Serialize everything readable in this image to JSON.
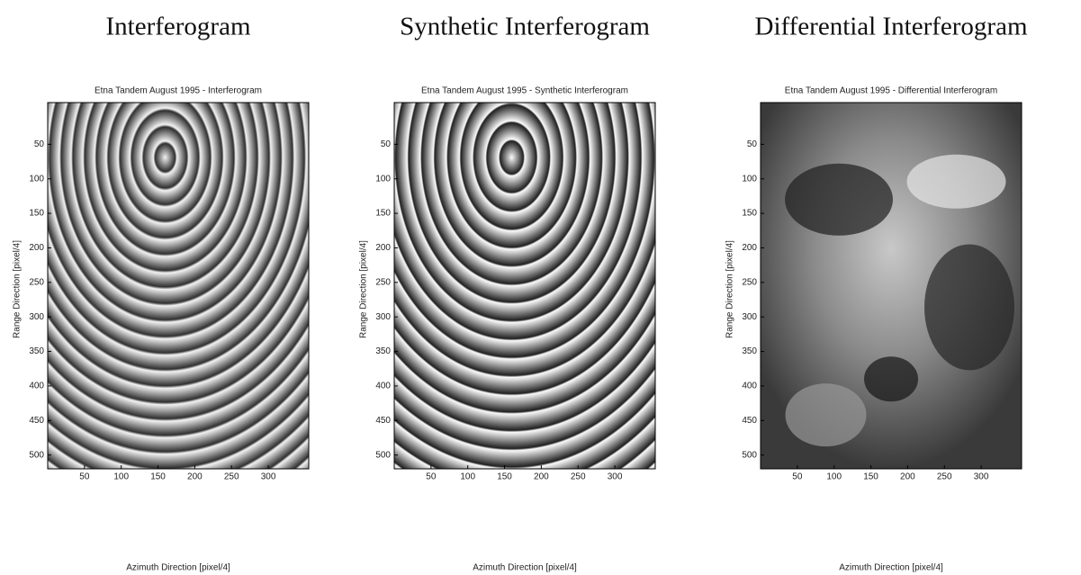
{
  "chart_data": [
    {
      "type": "image",
      "heading": "Interferogram",
      "title": "Etna Tandem August 1995 - Interferogram",
      "xlabel": "Azimuth Direction [pixel/4]",
      "ylabel": "Range Direction [pixel/4]",
      "xlim": [
        0,
        355
      ],
      "ylim": [
        0,
        520
      ],
      "xticks": [
        50,
        100,
        150,
        200,
        250,
        300
      ],
      "yticks": [
        50,
        100,
        150,
        200,
        250,
        300,
        350,
        400,
        450,
        500
      ]
    },
    {
      "type": "image",
      "heading": "Synthetic Interferogram",
      "title": "Etna Tandem August 1995 - Synthetic Interferogram",
      "xlabel": "Azimuth Direction [pixel/4]",
      "ylabel": "Range Direction [pixel/4]",
      "xlim": [
        0,
        355
      ],
      "ylim": [
        0,
        520
      ],
      "xticks": [
        50,
        100,
        150,
        200,
        250,
        300
      ],
      "yticks": [
        50,
        100,
        150,
        200,
        250,
        300,
        350,
        400,
        450,
        500
      ]
    },
    {
      "type": "image",
      "heading": "Differential Interferogram",
      "title": "Etna Tandem August 1995 - Differential Interferogram",
      "xlabel": "Azimuth Direction [pixel/4]",
      "ylabel": "Range Direction [pixel/4]",
      "xlim": [
        0,
        355
      ],
      "ylim": [
        0,
        520
      ],
      "xticks": [
        50,
        100,
        150,
        200,
        250,
        300
      ],
      "yticks": [
        50,
        100,
        150,
        200,
        250,
        300,
        350,
        400,
        450,
        500
      ]
    }
  ]
}
